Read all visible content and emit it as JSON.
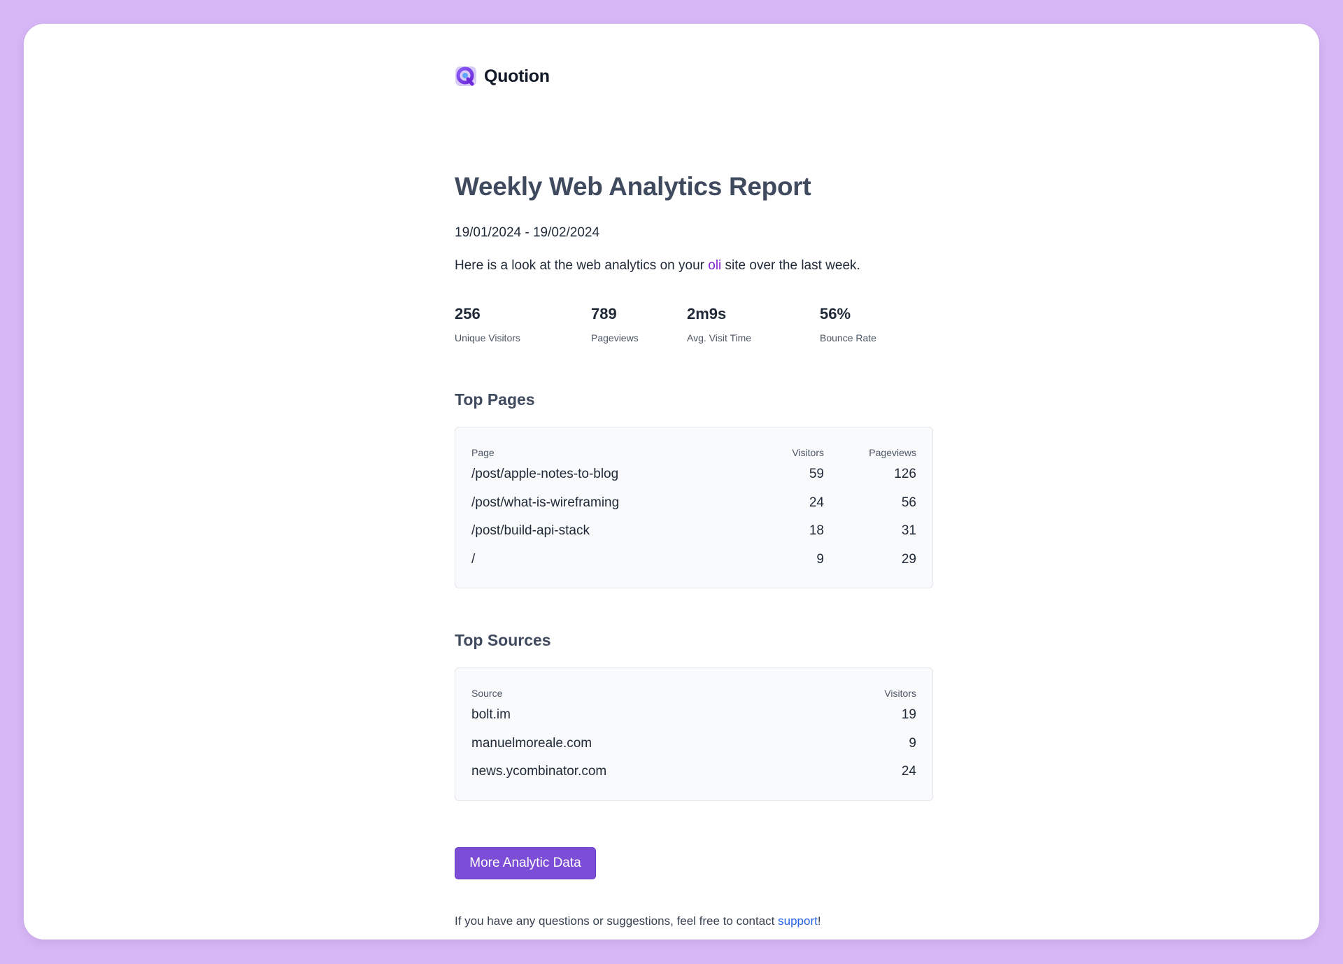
{
  "brand": {
    "name": "Quotion",
    "logo_icon": "quotion-logo-icon"
  },
  "report": {
    "title": "Weekly Web Analytics Report",
    "date_range": "19/01/2024 - 19/02/2024",
    "intro_before": "Here is a look at the web analytics on your ",
    "site_name": "oli",
    "intro_after": " site over the last week."
  },
  "stats": [
    {
      "value": "256",
      "label": "Unique Visitors"
    },
    {
      "value": "789",
      "label": "Pageviews"
    },
    {
      "value": "2m9s",
      "label": "Avg. Visit Time"
    },
    {
      "value": "56%",
      "label": "Bounce Rate"
    }
  ],
  "top_pages": {
    "title": "Top Pages",
    "headers": {
      "page": "Page",
      "visitors": "Visitors",
      "pageviews": "Pageviews"
    },
    "rows": [
      {
        "page": "/post/apple-notes-to-blog",
        "visitors": "59",
        "pageviews": "126"
      },
      {
        "page": "/post/what-is-wireframing",
        "visitors": "24",
        "pageviews": "56"
      },
      {
        "page": "/post/build-api-stack",
        "visitors": "18",
        "pageviews": "31"
      },
      {
        "page": "/",
        "visitors": "9",
        "pageviews": "29"
      }
    ]
  },
  "top_sources": {
    "title": "Top Sources",
    "headers": {
      "source": "Source",
      "visitors": "Visitors"
    },
    "rows": [
      {
        "source": "bolt.im",
        "visitors": "19"
      },
      {
        "source": "manuelmoreale.com",
        "visitors": "9"
      },
      {
        "source": "news.ycombinator.com",
        "visitors": "24"
      }
    ]
  },
  "cta": {
    "label": "More Analytic Data"
  },
  "footer": {
    "text_before": "If you have any questions or suggestions, feel free to contact ",
    "link_label": "support",
    "text_after": "!"
  },
  "colors": {
    "background": "#d7b8f5",
    "accent": "#7c4dd6",
    "site_link": "#7e22ce",
    "support_link": "#2563eb"
  }
}
